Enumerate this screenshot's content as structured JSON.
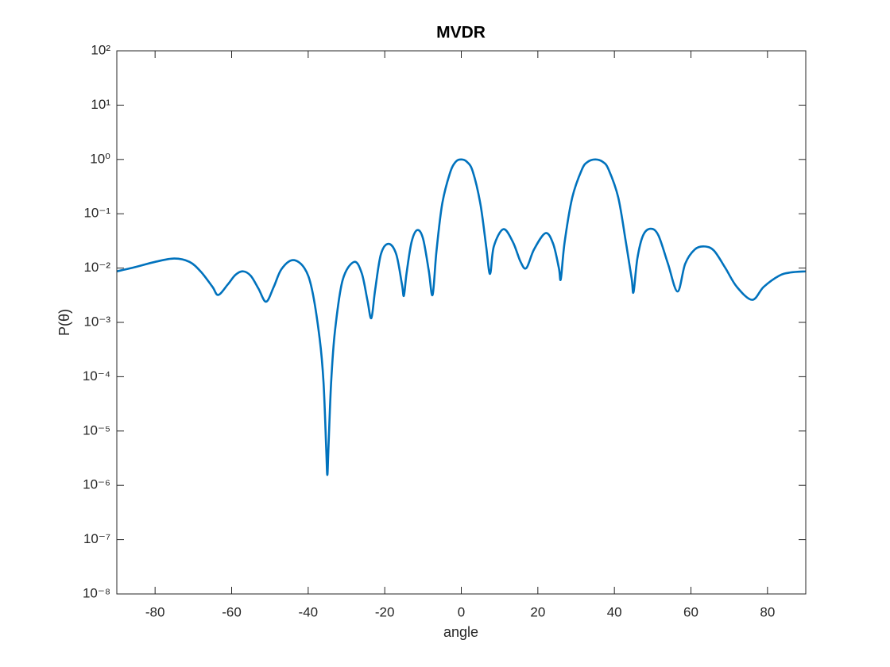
{
  "chart_data": {
    "type": "line",
    "title": "MVDR",
    "xlabel": "angle",
    "ylabel": "P(θ)",
    "log_y": true,
    "grid": false,
    "xlim": [
      -90,
      90
    ],
    "xticks": [
      -80,
      -60,
      -40,
      -20,
      0,
      20,
      40,
      60,
      80
    ],
    "ylim": [
      1e-08,
      100
    ],
    "yticks": [
      {
        "value": 1e-08,
        "label": "10⁻⁸"
      },
      {
        "value": 1e-07,
        "label": "10⁻⁷"
      },
      {
        "value": 1e-06,
        "label": "10⁻⁶"
      },
      {
        "value": 1e-05,
        "label": "10⁻⁵"
      },
      {
        "value": 0.0001,
        "label": "10⁻⁴"
      },
      {
        "value": 0.001,
        "label": "10⁻³"
      },
      {
        "value": 0.01,
        "label": "10⁻²"
      },
      {
        "value": 0.1,
        "label": "10⁻¹"
      },
      {
        "value": 1,
        "label": "10⁰"
      },
      {
        "value": 10,
        "label": "10¹"
      },
      {
        "value": 100,
        "label": "10²"
      }
    ],
    "x": [
      -90,
      -85,
      -80,
      -75,
      -71,
      -68,
      -65,
      -63.5,
      -61,
      -59,
      -57,
      -55,
      -53,
      -51,
      -49,
      -47,
      -44,
      -41,
      -39,
      -37,
      -36,
      -35.3,
      -35,
      -34.7,
      -34,
      -33,
      -31,
      -28,
      -26,
      -24.5,
      -23.5,
      -22.5,
      -21,
      -19,
      -17,
      -15.5,
      -15,
      -14.3,
      -13,
      -11.5,
      -10,
      -8.5,
      -7.5,
      -6.5,
      -5,
      -3,
      -1.5,
      0,
      1.5,
      3,
      5,
      6.5,
      7.5,
      8.5,
      11,
      13.5,
      15.5,
      17,
      19,
      22,
      24,
      25.5,
      26,
      27,
      29,
      31.5,
      33,
      35,
      37,
      38.5,
      41,
      43,
      44.5,
      45,
      46,
      47.5,
      49.5,
      51.5,
      54,
      56.5,
      58.5,
      61,
      63.5,
      66,
      69,
      72,
      76,
      79,
      83,
      86,
      90
    ],
    "series": [
      {
        "color": "#0072bd",
        "values": [
          0.0087,
          0.0105,
          0.013,
          0.015,
          0.013,
          0.0085,
          0.0045,
          0.0032,
          0.005,
          0.0075,
          0.0087,
          0.0072,
          0.0042,
          0.0024,
          0.0045,
          0.0095,
          0.014,
          0.01,
          0.004,
          0.0005,
          8e-05,
          5e-06,
          1.55e-06,
          5e-06,
          8e-05,
          0.0007,
          0.006,
          0.013,
          0.008,
          0.0025,
          0.0012,
          0.004,
          0.018,
          0.028,
          0.018,
          0.005,
          0.0031,
          0.008,
          0.03,
          0.05,
          0.035,
          0.009,
          0.0032,
          0.02,
          0.15,
          0.55,
          0.9,
          1,
          0.9,
          0.6,
          0.15,
          0.025,
          0.0078,
          0.025,
          0.052,
          0.03,
          0.013,
          0.01,
          0.022,
          0.044,
          0.028,
          0.01,
          0.0063,
          0.03,
          0.2,
          0.65,
          0.9,
          1,
          0.9,
          0.65,
          0.2,
          0.03,
          0.0065,
          0.0036,
          0.015,
          0.04,
          0.053,
          0.04,
          0.012,
          0.0037,
          0.012,
          0.022,
          0.025,
          0.021,
          0.01,
          0.0045,
          0.0026,
          0.0045,
          0.0072,
          0.0083,
          0.0087
        ]
      }
    ]
  }
}
